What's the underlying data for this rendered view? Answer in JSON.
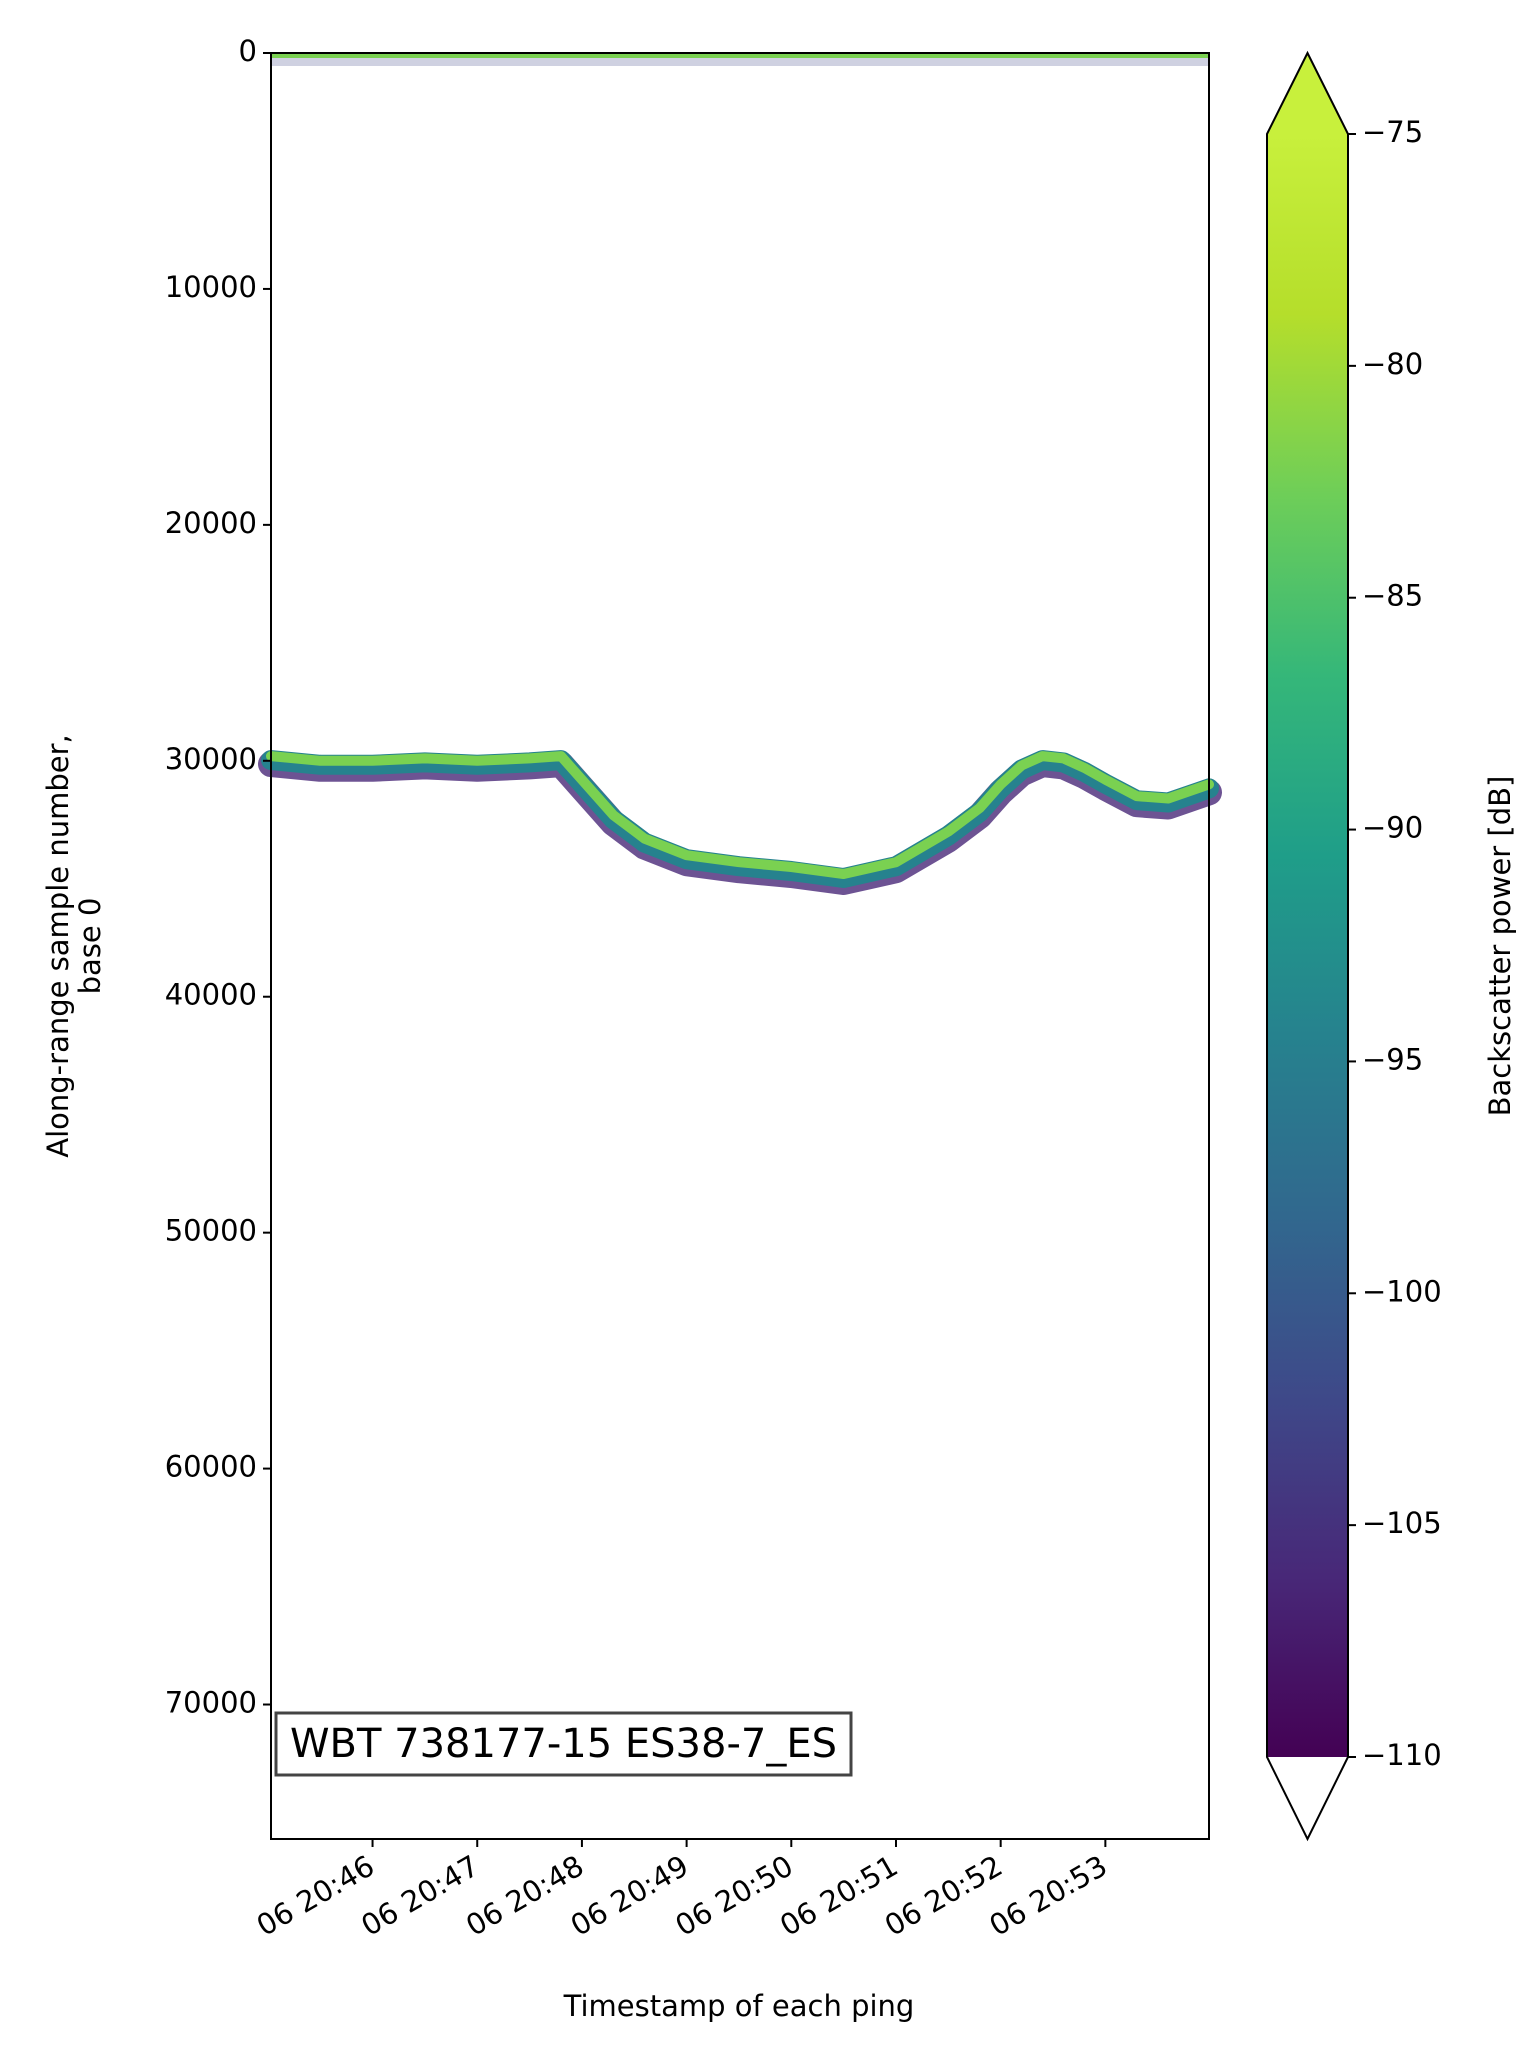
{
  "chart_data": {
    "type": "echogram",
    "xlabel": "Timestamp of each ping",
    "ylabel": [
      "Along-range sample number,",
      "base 0"
    ],
    "colorbar_label": "Backscatter power [dB]",
    "annotation": "WBT 738177-15 ES38-7_ES",
    "xlim": [
      45.03,
      53.99
    ],
    "xticks": [
      {
        "value": 46,
        "label": "06 20:46"
      },
      {
        "value": 47,
        "label": "06 20:47"
      },
      {
        "value": 48,
        "label": "06 20:48"
      },
      {
        "value": 49,
        "label": "06 20:49"
      },
      {
        "value": 50,
        "label": "06 20:50"
      },
      {
        "value": 51,
        "label": "06 20:51"
      },
      {
        "value": 52,
        "label": "06 20:52"
      },
      {
        "value": 53,
        "label": "06 20:53"
      }
    ],
    "ylim": [
      0,
      75700
    ],
    "y_inverted": true,
    "yticks": [
      0,
      10000,
      20000,
      30000,
      40000,
      50000,
      60000,
      70000
    ],
    "x": [
      45.03,
      45.5,
      46,
      46.5,
      47,
      47.5,
      47.8,
      48,
      48.3,
      48.6,
      49,
      49.5,
      50,
      50.5,
      51,
      51.5,
      51.8,
      52,
      52.2,
      52.4,
      52.6,
      52.8,
      53,
      53.3,
      53.6,
      53.99
    ],
    "series": [
      {
        "color": "#7ad151",
        "values": [
          29800,
          30000,
          30000,
          29900,
          30000,
          29900,
          29800,
          30800,
          32300,
          33300,
          34000,
          34300,
          34500,
          34800,
          34300,
          33000,
          32000,
          31000,
          30200,
          29800,
          29900,
          30300,
          30800,
          31500,
          31600,
          31000
        ]
      }
    ],
    "clim": [
      -110,
      -75
    ],
    "cticks": [
      {
        "value": -110,
        "label": "−110"
      },
      {
        "value": -105,
        "label": "−105"
      },
      {
        "value": -100,
        "label": "−100"
      },
      {
        "value": -95,
        "label": "−95"
      },
      {
        "value": -90,
        "label": "−90"
      },
      {
        "value": -85,
        "label": "−85"
      },
      {
        "value": -80,
        "label": "−80"
      },
      {
        "value": -75,
        "label": "−75"
      }
    ],
    "colormap": [
      "#440154",
      "#482878",
      "#3e4989",
      "#31688e",
      "#26828e",
      "#1f9e89",
      "#35b779",
      "#6ece58",
      "#b5de2b",
      "#c8f03c"
    ],
    "under_color": "#ffffff",
    "over_color": "#c8f03c"
  }
}
